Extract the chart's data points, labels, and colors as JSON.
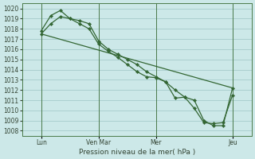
{
  "xlabel": "Pression niveau de la mer( hPa )",
  "bg_color": "#cce8e8",
  "grid_color": "#b0d4d4",
  "line_color": "#336633",
  "ylim": [
    1007.5,
    1020.5
  ],
  "yticks": [
    1008,
    1009,
    1010,
    1011,
    1012,
    1013,
    1014,
    1015,
    1016,
    1017,
    1018,
    1019,
    1020
  ],
  "xlim": [
    0,
    288
  ],
  "xtick_positions": [
    24,
    96,
    168,
    264
  ],
  "xtick_labels": [
    "Lun",
    "Ven Mar",
    "Mer",
    "Jeu"
  ],
  "vlines": [
    24,
    96,
    168,
    264
  ],
  "line1_x": [
    24,
    36,
    48,
    60,
    72,
    84,
    96,
    108,
    120,
    132,
    144,
    156,
    168,
    180,
    192,
    204,
    216,
    228,
    240,
    252,
    264
  ],
  "line1_y": [
    1017.8,
    1019.3,
    1019.8,
    1019.0,
    1018.8,
    1018.5,
    1016.8,
    1016.0,
    1015.5,
    1015.0,
    1014.5,
    1013.8,
    1013.3,
    1012.8,
    1012.0,
    1011.3,
    1011.0,
    1009.0,
    1008.5,
    1008.5,
    1012.2
  ],
  "line2_x": [
    24,
    36,
    48,
    60,
    72,
    84,
    96,
    108,
    120,
    132,
    144,
    156,
    168,
    180,
    192,
    204,
    216,
    228,
    240,
    252,
    264
  ],
  "line2_y": [
    1017.5,
    1018.5,
    1019.2,
    1019.0,
    1018.5,
    1018.0,
    1016.5,
    1015.8,
    1015.2,
    1014.5,
    1013.8,
    1013.3,
    1013.2,
    1012.8,
    1011.2,
    1011.3,
    1010.2,
    1008.8,
    1008.7,
    1008.8,
    1011.5
  ],
  "line3_x": [
    24,
    264
  ],
  "line3_y": [
    1017.5,
    1012.2
  ]
}
